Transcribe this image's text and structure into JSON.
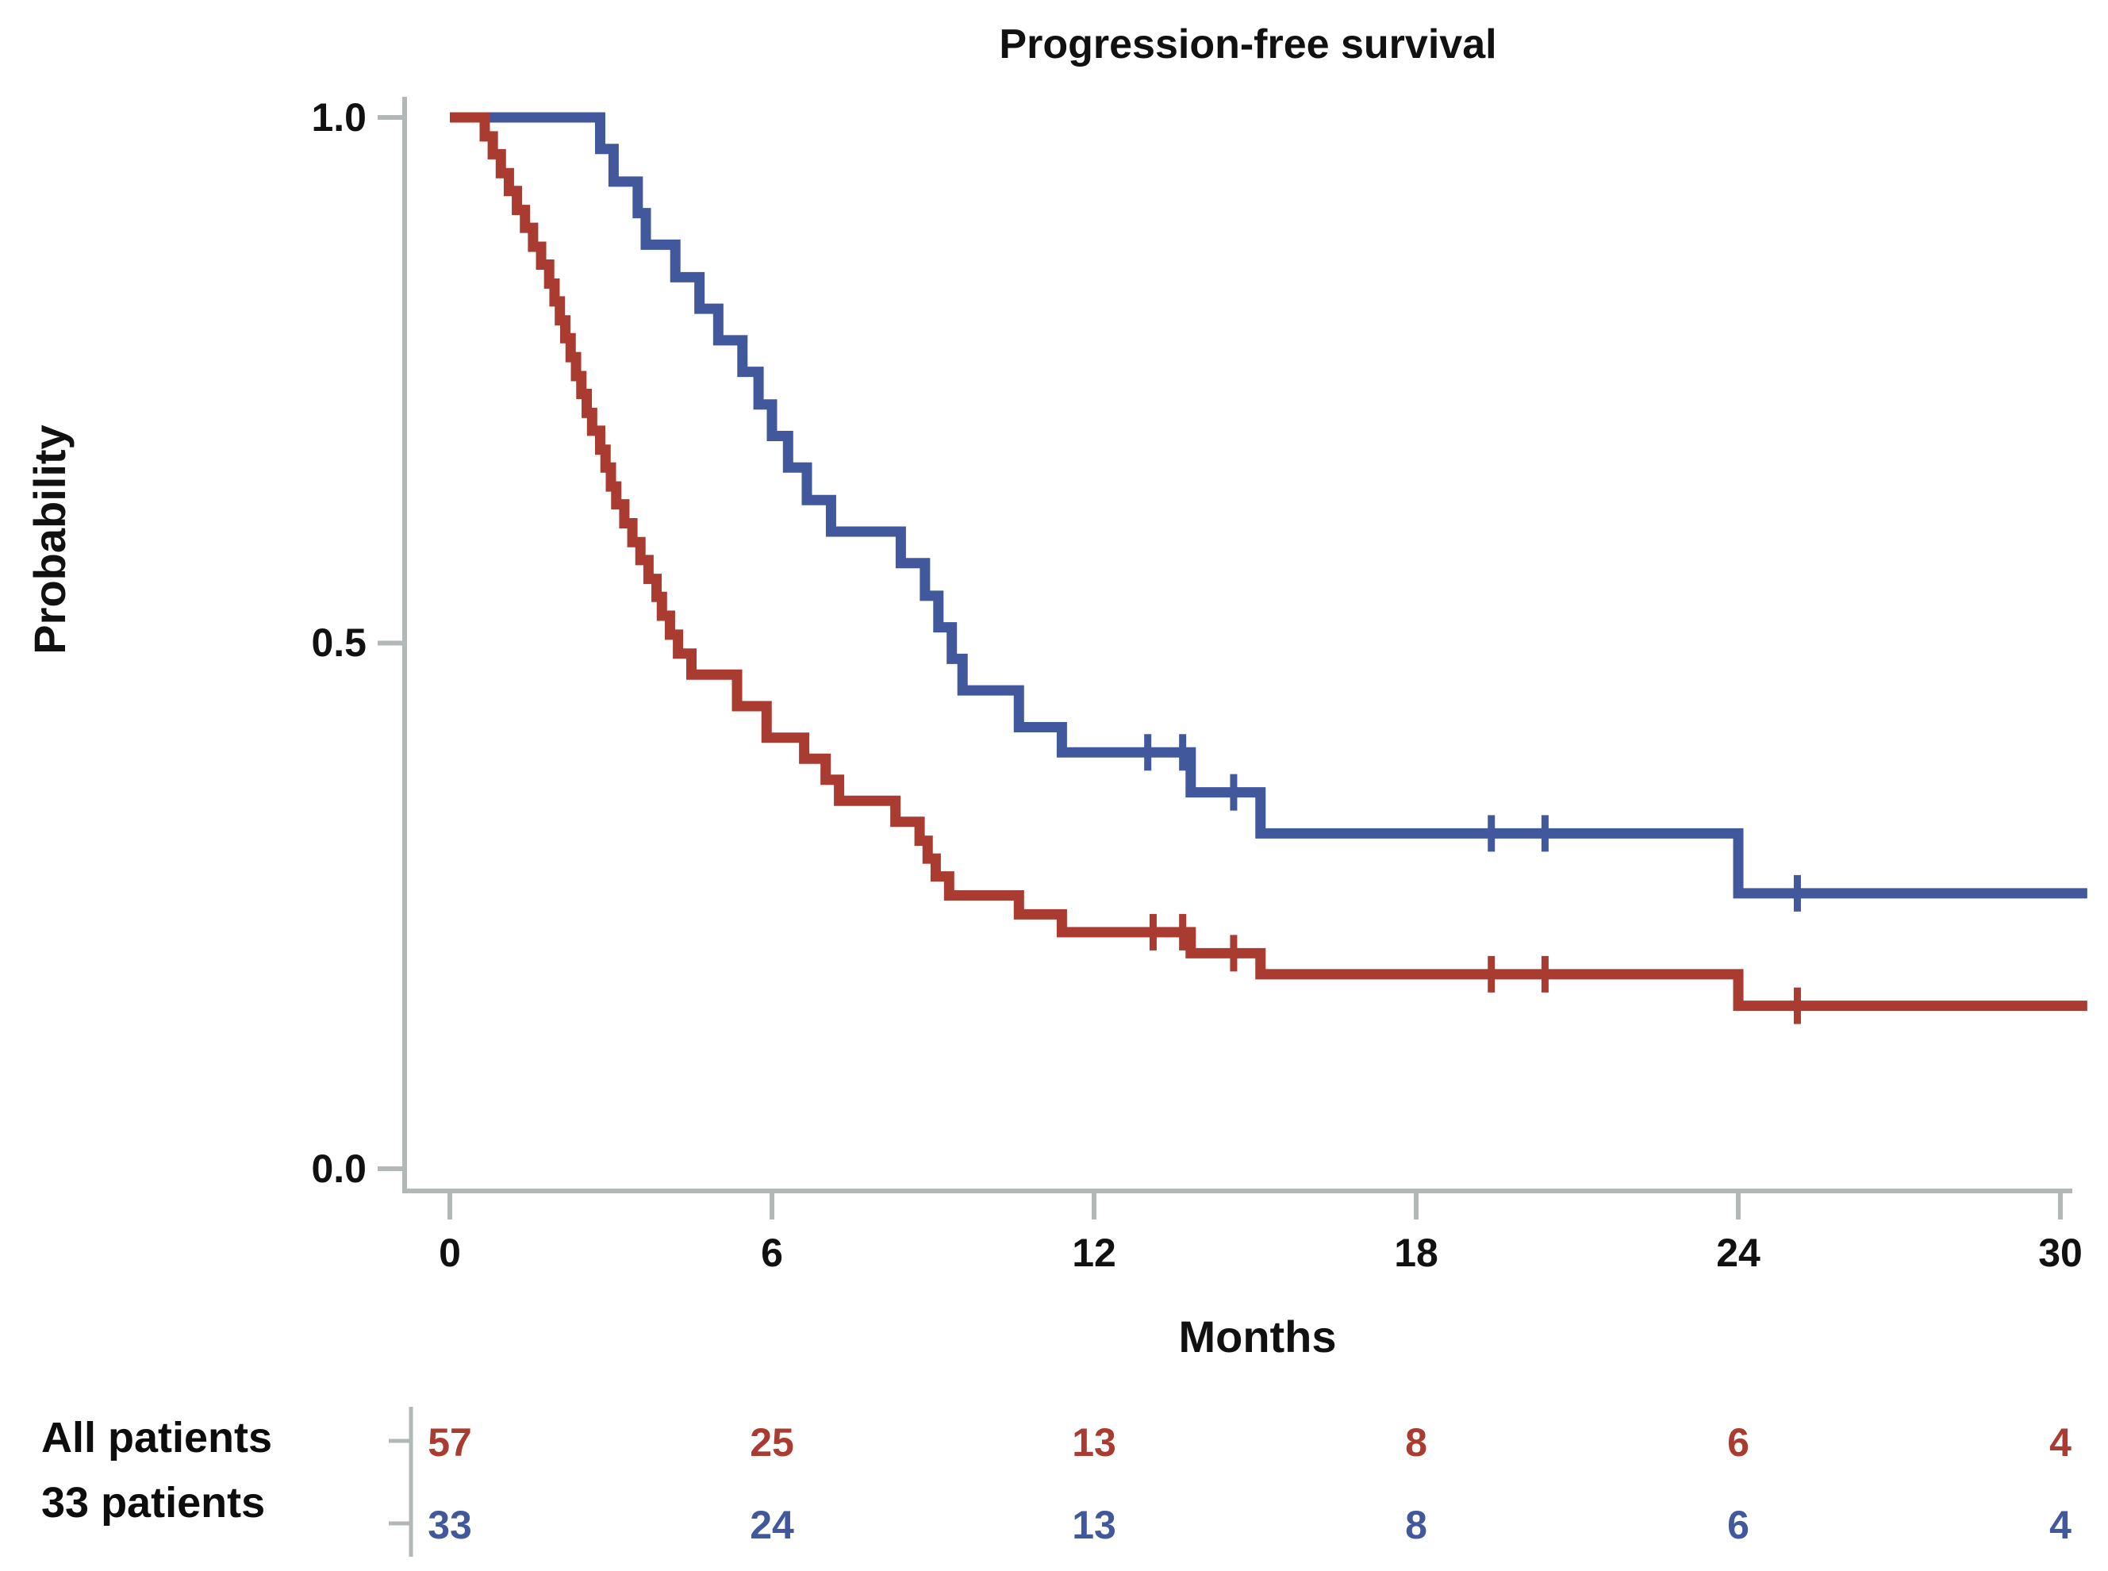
{
  "title": "Progression-free survival",
  "y_axis": {
    "label": "Probability",
    "ticks": [
      "1.0",
      "0.5",
      "0.0"
    ],
    "tick_values": [
      1.0,
      0.5,
      0.0
    ]
  },
  "x_axis": {
    "label": "Months",
    "ticks": [
      "0",
      "6",
      "12",
      "18",
      "24",
      "30"
    ],
    "tick_values": [
      0,
      6,
      12,
      18,
      24,
      30
    ]
  },
  "risk_table": {
    "rows": [
      {
        "label": "All patients",
        "color": "#A93B30",
        "values": [
          "57",
          "25",
          "13",
          "8",
          "6",
          "4"
        ]
      },
      {
        "label": "33 patients",
        "color": "#41589D",
        "values": [
          "33",
          "24",
          "13",
          "8",
          "6",
          "4"
        ]
      }
    ]
  },
  "colors": {
    "red": "#A93B30",
    "blue": "#41589D",
    "axis": "#B2B7B7",
    "text": "#111111"
  },
  "chart_data": {
    "type": "line",
    "subtype": "kaplan-meier-step",
    "title": "Progression-free survival",
    "xlabel": "Months",
    "ylabel": "Probability",
    "xlim": [
      0,
      30.8
    ],
    "ylim": [
      0.0,
      1.0
    ],
    "x_ticks": [
      0,
      6,
      12,
      18,
      24,
      30
    ],
    "y_ticks": [
      1.0,
      0.5,
      0.0
    ],
    "grid": false,
    "legend_position": "none",
    "series": [
      {
        "name": "All patients",
        "n": 57,
        "color": "#A93B30",
        "start": [
          0,
          1.0
        ],
        "end_time": 30.5,
        "events": [
          [
            0.65,
            0.982
          ],
          [
            0.8,
            0.965
          ],
          [
            0.95,
            0.947
          ],
          [
            1.1,
            0.93
          ],
          [
            1.25,
            0.912
          ],
          [
            1.4,
            0.895
          ],
          [
            1.55,
            0.877
          ],
          [
            1.7,
            0.86
          ],
          [
            1.85,
            0.842
          ],
          [
            1.95,
            0.825
          ],
          [
            2.05,
            0.807
          ],
          [
            2.15,
            0.79
          ],
          [
            2.25,
            0.772
          ],
          [
            2.35,
            0.754
          ],
          [
            2.45,
            0.737
          ],
          [
            2.55,
            0.719
          ],
          [
            2.65,
            0.702
          ],
          [
            2.8,
            0.684
          ],
          [
            2.9,
            0.667
          ],
          [
            3.0,
            0.649
          ],
          [
            3.1,
            0.632
          ],
          [
            3.25,
            0.614
          ],
          [
            3.4,
            0.596
          ],
          [
            3.55,
            0.579
          ],
          [
            3.7,
            0.561
          ],
          [
            3.85,
            0.544
          ],
          [
            3.95,
            0.526
          ],
          [
            4.1,
            0.508
          ],
          [
            4.25,
            0.49
          ],
          [
            4.5,
            0.47
          ],
          [
            5.35,
            0.44
          ],
          [
            5.9,
            0.41
          ],
          [
            6.6,
            0.39
          ],
          [
            7.0,
            0.37
          ],
          [
            7.25,
            0.35
          ],
          [
            8.3,
            0.33
          ],
          [
            8.75,
            0.312
          ],
          [
            8.9,
            0.295
          ],
          [
            9.05,
            0.278
          ],
          [
            9.3,
            0.26
          ],
          [
            10.6,
            0.242
          ],
          [
            11.4,
            0.225
          ],
          [
            13.8,
            0.205
          ],
          [
            15.1,
            0.185
          ],
          [
            24.0,
            0.155
          ]
        ],
        "censor_times": [
          13.1,
          13.65,
          14.6,
          19.4,
          20.4,
          25.1
        ],
        "at_risk": [
          57,
          25,
          13,
          8,
          6,
          4
        ]
      },
      {
        "name": "33 patients",
        "n": 33,
        "color": "#41589D",
        "start": [
          0,
          1.0
        ],
        "end_time": 30.5,
        "events": [
          [
            2.8,
            0.97
          ],
          [
            3.05,
            0.939
          ],
          [
            3.5,
            0.909
          ],
          [
            3.65,
            0.879
          ],
          [
            4.2,
            0.848
          ],
          [
            4.65,
            0.818
          ],
          [
            5.0,
            0.788
          ],
          [
            5.45,
            0.758
          ],
          [
            5.75,
            0.727
          ],
          [
            6.0,
            0.697
          ],
          [
            6.3,
            0.667
          ],
          [
            6.65,
            0.636
          ],
          [
            7.1,
            0.606
          ],
          [
            8.4,
            0.576
          ],
          [
            8.85,
            0.545
          ],
          [
            9.1,
            0.515
          ],
          [
            9.35,
            0.485
          ],
          [
            9.55,
            0.455
          ],
          [
            10.6,
            0.42
          ],
          [
            11.4,
            0.396
          ],
          [
            13.8,
            0.358
          ],
          [
            15.1,
            0.319
          ],
          [
            24.0,
            0.262
          ]
        ],
        "censor_times": [
          13.0,
          13.65,
          14.6,
          19.4,
          20.4,
          25.1
        ],
        "at_risk": [
          33,
          24,
          13,
          8,
          6,
          4
        ]
      }
    ]
  }
}
